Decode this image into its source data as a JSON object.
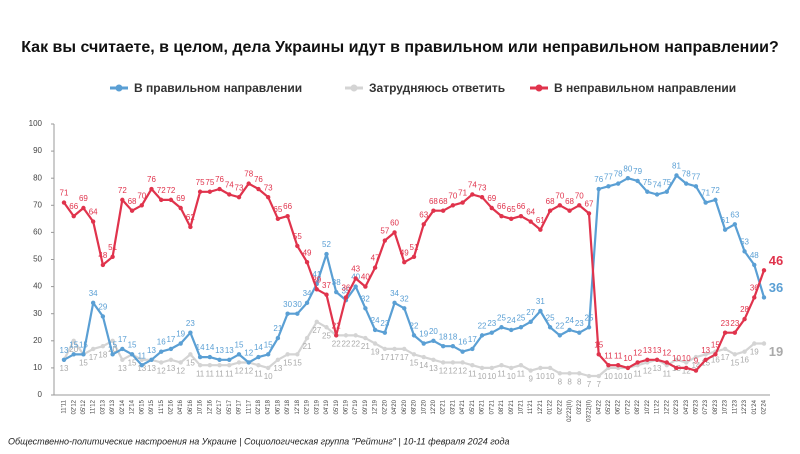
{
  "chart_data": {
    "type": "line",
    "title": "Как вы считаете, в целом, дела Украины идут в правильном или неправильном направлении?",
    "footnote": "Общественно-политические настроения на Украине | Социологическая группа \"Рейтинг\" | 10-11 февраля 2024 года",
    "categories": [
      "11'11",
      "02'12",
      "05'12",
      "11'12",
      "03'13",
      "09'13",
      "02'14",
      "12'14",
      "06'15",
      "09'15",
      "11'15",
      "02'16",
      "04'16",
      "06'16",
      "10'16",
      "12'16",
      "02'17",
      "05'17",
      "09'17",
      "11'17",
      "02'18",
      "04'18",
      "06'18",
      "09'18",
      "12'18",
      "02'19",
      "03'19",
      "04'19",
      "05'19",
      "06'19",
      "07'19",
      "09'19",
      "12'19",
      "02'20",
      "04'20",
      "06'20",
      "08'20",
      "10'20",
      "12'20",
      "02'21",
      "03'21",
      "04'21",
      "05'21",
      "06'21",
      "07'21",
      "08'21",
      "09'21",
      "10'21",
      "11'21",
      "12'21",
      "01'22",
      "02'22",
      "02'22(II)",
      "03'22",
      "03'22(II)",
      "04'22",
      "05'22",
      "06'22",
      "07'22",
      "08'22",
      "10'22",
      "11'22",
      "12'22",
      "02'23",
      "04'23",
      "05'23",
      "07'23",
      "08'23",
      "10'23",
      "11'23",
      "12'23",
      "01'24",
      "02'24"
    ],
    "ylim": [
      0,
      100
    ],
    "yticks": [
      0,
      10,
      20,
      30,
      40,
      50,
      60,
      70,
      80,
      90,
      100
    ],
    "legend": "top",
    "series": [
      {
        "name": "В правильном направлении",
        "color": "#5a9fd4",
        "values": [
          13,
          15,
          15,
          34,
          29,
          15,
          17,
          15,
          11,
          13,
          16,
          17,
          19,
          23,
          14,
          14,
          13,
          13,
          15,
          12,
          14,
          15,
          21,
          30,
          30,
          34,
          41,
          52,
          38,
          35,
          40,
          32,
          24,
          23,
          34,
          32,
          22,
          19,
          20,
          18,
          18,
          16,
          17,
          22,
          23,
          25,
          24,
          25,
          27,
          31,
          25,
          22,
          24,
          23,
          25,
          76,
          77,
          78,
          80,
          79,
          75,
          74,
          75,
          81,
          78,
          77,
          71,
          72,
          61,
          63,
          53,
          48,
          36
        ]
      },
      {
        "name": "Затрудняюсь ответить",
        "color": "#d4d4d4",
        "values": [
          13,
          20,
          15,
          17,
          18,
          20,
          13,
          15,
          13,
          13,
          12,
          13,
          12,
          15,
          11,
          11,
          11,
          11,
          12,
          12,
          11,
          10,
          13,
          15,
          15,
          21,
          27,
          25,
          22,
          22,
          22,
          21,
          19,
          17,
          17,
          17,
          15,
          14,
          13,
          12,
          12,
          12,
          11,
          10,
          10,
          11,
          10,
          11,
          9,
          10,
          10,
          8,
          8,
          8,
          7,
          7,
          10,
          10,
          10,
          11,
          12,
          13,
          11,
          13,
          12,
          14,
          15,
          16,
          17,
          15,
          16,
          19,
          19
        ]
      },
      {
        "name": "В неправильном направлении",
        "color": "#e0334c",
        "values": [
          71,
          66,
          69,
          64,
          48,
          51,
          72,
          68,
          70,
          76,
          72,
          72,
          69,
          62,
          75,
          75,
          76,
          74,
          73,
          78,
          76,
          73,
          65,
          66,
          55,
          49,
          39,
          37,
          22,
          36,
          43,
          40,
          47,
          57,
          60,
          49,
          51,
          63,
          68,
          68,
          70,
          71,
          74,
          73,
          69,
          66,
          65,
          66,
          64,
          61,
          68,
          70,
          68,
          70,
          67,
          15,
          11,
          11,
          10,
          12,
          13,
          13,
          12,
          10,
          10,
          9,
          13,
          15,
          23,
          23,
          28,
          36,
          46
        ]
      }
    ]
  }
}
